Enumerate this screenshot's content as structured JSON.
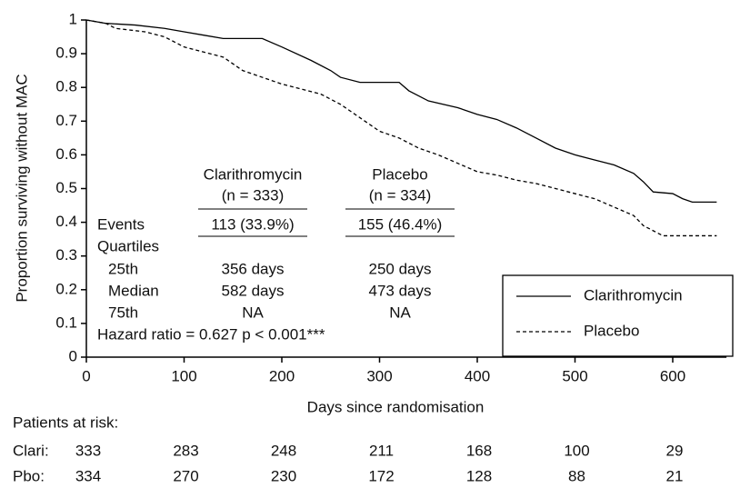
{
  "chart_data": {
    "type": "line",
    "y_label": "Proportion surviving without MAC",
    "x_label": "Days since randomisation",
    "xlim": [
      0,
      655
    ],
    "ylim": [
      0,
      1
    ],
    "xticks": [
      0,
      100,
      200,
      300,
      400,
      500,
      600
    ],
    "yticks": [
      0,
      0.1,
      0.2,
      0.3,
      0.4,
      0.5,
      0.6,
      0.7,
      0.8,
      0.9,
      1
    ],
    "legend": "lower right",
    "series": [
      {
        "name": "Clarithromycin",
        "color": "#000000",
        "dash": "solid",
        "x": [
          0,
          20,
          50,
          80,
          100,
          120,
          140,
          180,
          200,
          230,
          250,
          260,
          280,
          320,
          330,
          350,
          380,
          400,
          420,
          440,
          460,
          480,
          500,
          520,
          540,
          560,
          570,
          580,
          600,
          610,
          620,
          645
        ],
        "values": [
          1,
          0.99,
          0.985,
          0.975,
          0.965,
          0.955,
          0.945,
          0.945,
          0.92,
          0.88,
          0.85,
          0.83,
          0.815,
          0.815,
          0.79,
          0.76,
          0.74,
          0.72,
          0.705,
          0.68,
          0.65,
          0.62,
          0.6,
          0.585,
          0.57,
          0.545,
          0.52,
          0.49,
          0.485,
          0.47,
          0.46,
          0.46
        ]
      },
      {
        "name": "Placebo",
        "color": "#000000",
        "dash": "dashed",
        "x": [
          0,
          20,
          30,
          60,
          80,
          100,
          120,
          140,
          160,
          180,
          200,
          220,
          240,
          260,
          280,
          300,
          320,
          340,
          360,
          380,
          400,
          420,
          440,
          460,
          480,
          500,
          520,
          540,
          560,
          570,
          580,
          590,
          645
        ],
        "values": [
          1,
          0.99,
          0.975,
          0.965,
          0.95,
          0.92,
          0.905,
          0.89,
          0.85,
          0.83,
          0.81,
          0.795,
          0.78,
          0.75,
          0.71,
          0.67,
          0.65,
          0.62,
          0.6,
          0.575,
          0.55,
          0.54,
          0.525,
          0.515,
          0.5,
          0.485,
          0.47,
          0.445,
          0.42,
          0.39,
          0.375,
          0.36,
          0.36
        ]
      }
    ],
    "inset_table": {
      "headers": [
        "Clarithromycin",
        "Placebo"
      ],
      "subheaders": [
        "(n = 333)",
        "(n = 334)"
      ],
      "rows": [
        {
          "label": "Events",
          "values": [
            "113 (33.9%)",
            "155 (46.4%)"
          ]
        },
        {
          "label": "Quartiles"
        },
        {
          "label": "25th",
          "values": [
            "356 days",
            "250 days"
          ]
        },
        {
          "label": "Median",
          "values": [
            "582 days",
            "473 days"
          ]
        },
        {
          "label": "75th",
          "values": [
            "NA",
            "NA"
          ]
        }
      ],
      "footer": "Hazard ratio = 0.627 p < 0.001***"
    },
    "risk_table": {
      "title": "Patients at risk:",
      "rows": [
        {
          "label": "Clari:",
          "values": [
            "333",
            "283",
            "248",
            "211",
            "168",
            "100",
            "29"
          ]
        },
        {
          "label": "Pbo:",
          "values": [
            "334",
            "270",
            "230",
            "172",
            "128",
            "88",
            "21"
          ]
        }
      ]
    }
  }
}
